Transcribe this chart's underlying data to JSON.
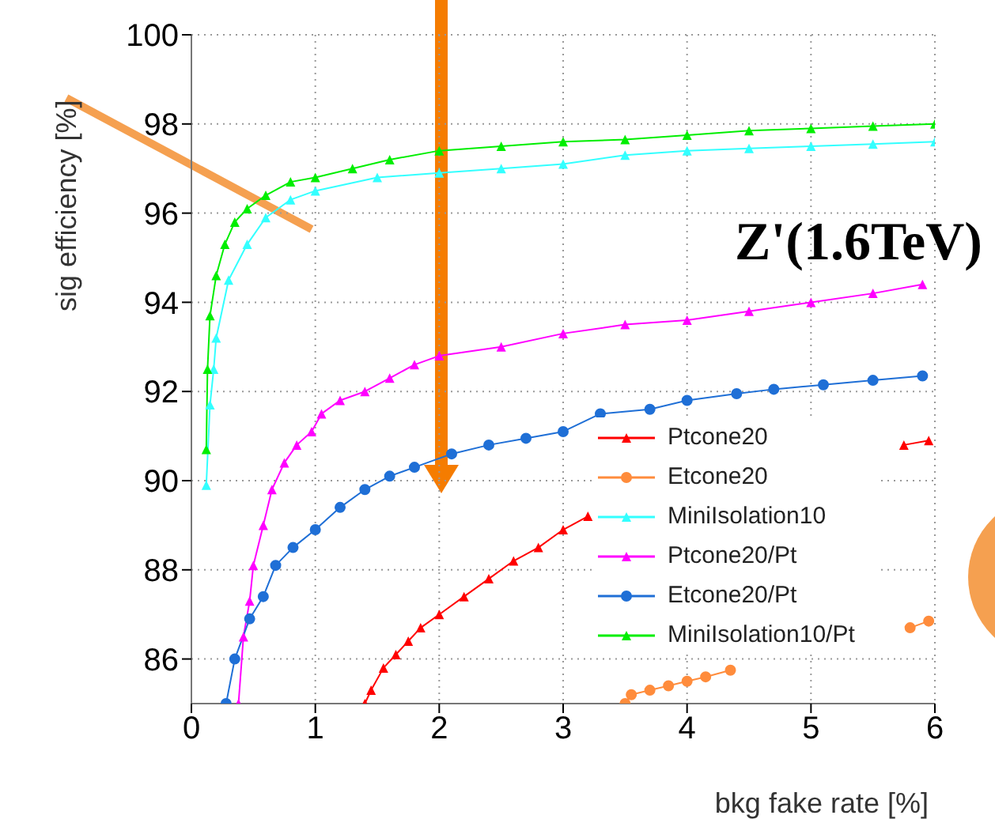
{
  "chart_data": {
    "type": "line",
    "xlabel": "bkg fake rate [%]",
    "ylabel": "sig efficiency [%]",
    "annotations": [
      "Z'(1.6TeV)"
    ],
    "xlim": [
      0,
      6
    ],
    "ylim": [
      85,
      100
    ],
    "xticks": [
      0,
      1,
      2,
      3,
      4,
      5,
      6
    ],
    "yticks": [
      86,
      88,
      90,
      92,
      94,
      96,
      98,
      100
    ],
    "grid": true,
    "legend": "bottom right",
    "series": [
      {
        "name": "Ptcone20",
        "color": "#ff0000",
        "marker": "triangle",
        "x": [
          1.4,
          1.45,
          1.55,
          1.65,
          1.75,
          1.85,
          2.0,
          2.2,
          2.4,
          2.6,
          2.8,
          3.0,
          3.2,
          4.5,
          5.75,
          5.95
        ],
        "values": [
          85,
          85.3,
          85.8,
          86.1,
          86.4,
          86.7,
          87.0,
          87.4,
          87.8,
          88.2,
          88.5,
          88.9,
          89.2,
          null,
          90.8,
          90.9
        ]
      },
      {
        "name": "Etcone20",
        "color": "#ff8c3c",
        "marker": "circle",
        "x": [
          3.5,
          3.55,
          3.7,
          3.85,
          4.0,
          4.15,
          4.35,
          5.0,
          5.8,
          5.95
        ],
        "values": [
          85,
          85.2,
          85.3,
          85.4,
          85.5,
          85.6,
          85.75,
          null,
          86.7,
          86.85
        ]
      },
      {
        "name": "MiniIsolation10",
        "color": "#33ffff",
        "marker": "triangle",
        "x": [
          0.12,
          0.15,
          0.18,
          0.2,
          0.3,
          0.45,
          0.6,
          0.8,
          1.0,
          1.5,
          2.0,
          2.5,
          3.0,
          3.5,
          4.0,
          4.5,
          5.0,
          5.5,
          6.0
        ],
        "values": [
          89.9,
          91.7,
          92.5,
          93.2,
          94.5,
          95.3,
          95.9,
          96.3,
          96.5,
          96.8,
          96.9,
          97.0,
          97.1,
          97.3,
          97.4,
          97.45,
          97.5,
          97.55,
          97.6
        ]
      },
      {
        "name": "Ptcone20/Pt",
        "color": "#ff00ff",
        "marker": "triangle",
        "x": [
          0.38,
          0.42,
          0.47,
          0.5,
          0.58,
          0.65,
          0.75,
          0.85,
          0.97,
          1.05,
          1.2,
          1.4,
          1.6,
          1.8,
          2.0,
          2.5,
          3.0,
          3.5,
          4.0,
          4.5,
          5.0,
          5.5,
          5.9
        ],
        "values": [
          85,
          86.5,
          87.3,
          88.1,
          89.0,
          89.8,
          90.4,
          90.8,
          91.1,
          91.5,
          91.8,
          92.0,
          92.3,
          92.6,
          92.8,
          93.0,
          93.3,
          93.5,
          93.6,
          93.8,
          94.0,
          94.2,
          94.4
        ]
      },
      {
        "name": "Etcone20/Pt",
        "color": "#1f6fd6",
        "marker": "circle",
        "x": [
          0.28,
          0.35,
          0.47,
          0.58,
          0.68,
          0.82,
          1.0,
          1.2,
          1.4,
          1.6,
          1.8,
          2.1,
          2.4,
          2.7,
          3.0,
          3.3,
          3.7,
          4.0,
          4.4,
          4.7,
          5.1,
          5.5,
          5.9
        ],
        "values": [
          85,
          86.0,
          86.9,
          87.4,
          88.1,
          88.5,
          88.9,
          89.4,
          89.8,
          90.1,
          90.3,
          90.6,
          90.8,
          90.95,
          91.1,
          91.5,
          91.6,
          91.8,
          91.95,
          92.05,
          92.15,
          92.25,
          92.35
        ]
      },
      {
        "name": "MiniIsolation10/Pt",
        "color": "#00ee00",
        "marker": "triangle",
        "x": [
          0.12,
          0.13,
          0.15,
          0.2,
          0.27,
          0.35,
          0.45,
          0.6,
          0.8,
          1.0,
          1.3,
          1.6,
          2.0,
          2.5,
          3.0,
          3.5,
          4.0,
          4.5,
          5.0,
          5.5,
          6.0
        ],
        "values": [
          90.7,
          92.5,
          93.7,
          94.6,
          95.3,
          95.8,
          96.1,
          96.4,
          96.7,
          96.8,
          97.0,
          97.2,
          97.4,
          97.5,
          97.6,
          97.65,
          97.75,
          97.85,
          97.9,
          97.95,
          98.0
        ]
      }
    ]
  }
}
